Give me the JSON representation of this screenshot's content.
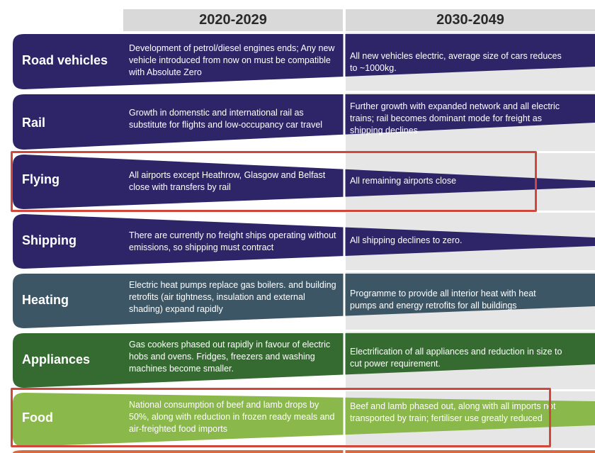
{
  "columns": [
    "2020-2029",
    "2030-2049"
  ],
  "rows": [
    {
      "label": "Road vehicles",
      "c1": "Development of petrol/diesel engines ends; Any new vehicle introduced from now on must be compatible with Absolute Zero",
      "c2": "All new vehicles electric, average size of cars reduces to ~1000kg.",
      "color": "#2e2569"
    },
    {
      "label": "Rail",
      "c1": "Growth in domenstic and international rail as substitute for flights and low-occupancy car travel",
      "c2": "Further growth with expanded network and all electric trains; rail becomes dominant mode for freight as shipping declines",
      "color": "#2e2569"
    },
    {
      "label": "Flying",
      "c1": "All airports except Heathrow, Glasgow and Belfast close with transfers by rail",
      "c2": "All remaining airports close",
      "color": "#2e2569"
    },
    {
      "label": "Shipping",
      "c1": "There are currently no freight ships operating without emissions, so shipping must contract",
      "c2": "All shipping declines to zero.",
      "color": "#2e2569"
    },
    {
      "label": "Heating",
      "c1": "Electric heat pumps replace gas boilers. and building retrofits (air tightness, insulation and external shading) expand rapidly",
      "c2": "Programme to provide all interior heat with heat pumps and energy retrofits for all buildings",
      "color": "#3d5666"
    },
    {
      "label": "Appliances",
      "c1": "Gas cookers phased out rapidly in favour of electric hobs and ovens. Fridges, freezers and washing machines become smaller.",
      "c2": "Electrification of all appliances and reduction in size to cut power requirement.",
      "color": "#356b30"
    },
    {
      "label": "Food",
      "c1": "National consumption of beef and lamb drops by 50%, along with reduction in frozen ready meals and air-freighted food imports",
      "c2": "Beef and lamb phased out, along with all imports not transported by train; fertiliser use greatly reduced",
      "color": "#8bb84a"
    }
  ],
  "colors": {
    "highlight": "#d2473b",
    "header_bg": "#d9d9d9",
    "next_row": "#d96a3f"
  }
}
